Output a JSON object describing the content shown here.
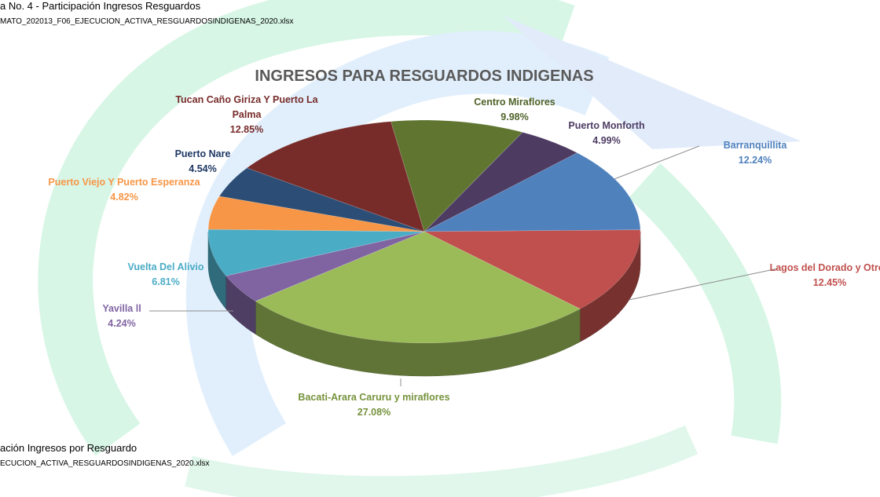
{
  "header": {
    "caption": "a No. 4 - Participación Ingresos Resguardos",
    "source": "MATO_202013_F06_EJECUCION_ACTIVA_RESGUARDOSINDIGENAS_2020.xlsx"
  },
  "chart_data": {
    "type": "pie",
    "title": "INGRESOS PARA RESGUARDOS INDIGENAS",
    "categories": [
      "Barranquillita",
      "Lagos del Dorado y Otros",
      "Bacati-Arara Caruru y miraflores",
      "Yavilla ll",
      "Vuelta Del Alivio",
      "Puerto Viejo Y Puerto Esperanza",
      "Puerto Nare",
      "Tucan Caño Giriza Y Puerto La Palma",
      "Centro Miraflores",
      "Puerto Monforth"
    ],
    "values": [
      12.24,
      12.45,
      27.08,
      4.24,
      6.81,
      4.82,
      4.54,
      12.85,
      9.98,
      4.99
    ],
    "value_labels": [
      "12.24%",
      "12.45%",
      "27.08%",
      "4.24%",
      "6.81%",
      "4.82%",
      "4.54%",
      "12.85%",
      "9.98%",
      "4.99%"
    ],
    "colors": [
      "#4f81bd",
      "#c0504d",
      "#9bbb59",
      "#8064a2",
      "#4bacc6",
      "#f79646",
      "#2c4d75",
      "#772c2a",
      "#5f7530",
      "#4d3b62"
    ]
  },
  "footer": {
    "caption": "ación Ingresos por Resguardo",
    "source": "ECUCION_ACTIVA_RESGUARDOSINDIGENAS_2020.xlsx"
  }
}
